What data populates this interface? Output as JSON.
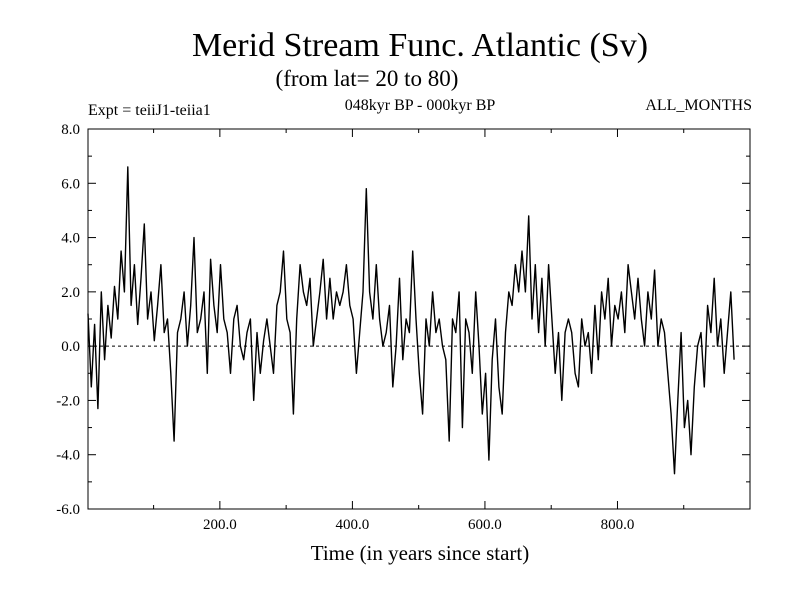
{
  "chart_data": {
    "type": "line",
    "title": "Merid Stream Func. Atlantic (Sv)",
    "subtitle": "(from lat= 20 to 80)",
    "experiment": "Expt = teiiJ1-teiia1",
    "period": "048kyr BP - 000kyr BP",
    "months": "ALL_MONTHS",
    "xlabel": "Time (in years since start)",
    "ylabel": "",
    "xlim": [
      1,
      1000
    ],
    "ylim": [
      -6,
      8
    ],
    "x_ticks": [
      200,
      400,
      600,
      800
    ],
    "x_tick_labels": [
      "200.0",
      "400.0",
      "600.0",
      "800.0"
    ],
    "y_ticks": [
      -6,
      -4,
      -2,
      0,
      2,
      4,
      6,
      8
    ],
    "y_tick_labels": [
      "-6.0",
      "-4.0",
      "-2.0",
      "0.0",
      "2.0",
      "4.0",
      "6.0",
      "8.0"
    ],
    "zero_line": "dashed",
    "line_color": "#000000",
    "series": [
      {
        "x_start": 1,
        "x_step": 5,
        "values": [
          1.2,
          -1.5,
          0.8,
          -2.3,
          2.0,
          -0.5,
          1.5,
          0.3,
          2.2,
          1.0,
          3.5,
          2.0,
          6.6,
          1.5,
          3.0,
          0.8,
          2.5,
          4.5,
          1.0,
          2.0,
          0.2,
          1.5,
          3.0,
          0.5,
          1.0,
          -1.0,
          -3.5,
          0.5,
          1.0,
          2.0,
          0.0,
          1.5,
          4.0,
          0.5,
          1.0,
          2.0,
          -1.0,
          3.2,
          1.5,
          0.5,
          3.0,
          1.0,
          0.5,
          -1.0,
          1.0,
          1.5,
          0.0,
          -0.5,
          0.5,
          1.0,
          -2.0,
          0.5,
          -1.0,
          0.2,
          1.0,
          0.0,
          -1.0,
          1.5,
          2.0,
          3.5,
          1.0,
          0.5,
          -2.5,
          1.0,
          3.0,
          2.0,
          1.5,
          2.5,
          0.0,
          1.0,
          2.0,
          3.2,
          1.0,
          2.5,
          1.0,
          2.0,
          1.5,
          2.0,
          3.0,
          1.5,
          1.0,
          -1.0,
          0.5,
          2.0,
          5.8,
          2.0,
          1.0,
          3.0,
          1.0,
          0.0,
          0.5,
          1.5,
          -1.5,
          0.0,
          2.5,
          -0.5,
          1.0,
          0.5,
          3.5,
          1.0,
          -1.0,
          -2.5,
          1.0,
          0.0,
          2.0,
          0.5,
          1.0,
          0.0,
          -0.5,
          -3.5,
          1.0,
          0.5,
          2.0,
          -3.0,
          1.0,
          0.5,
          -1.0,
          2.0,
          0.0,
          -2.5,
          -1.0,
          -4.2,
          -0.5,
          1.0,
          -1.5,
          -2.5,
          0.5,
          2.0,
          1.5,
          3.0,
          2.0,
          3.5,
          2.0,
          4.8,
          1.0,
          3.0,
          0.5,
          2.5,
          0.0,
          3.0,
          1.0,
          -1.0,
          0.5,
          -2.0,
          0.5,
          1.0,
          0.5,
          -1.0,
          -1.5,
          1.0,
          0.0,
          0.5,
          -1.0,
          1.5,
          -0.5,
          2.0,
          1.0,
          2.5,
          0.0,
          1.5,
          1.0,
          2.0,
          0.5,
          3.0,
          2.0,
          1.0,
          2.5,
          1.0,
          0.0,
          2.0,
          1.0,
          2.8,
          0.0,
          1.0,
          0.5,
          -1.0,
          -2.5,
          -4.7,
          -2.0,
          0.5,
          -3.0,
          -2.0,
          -4.0,
          -1.5,
          0.0,
          0.5,
          -1.5,
          1.5,
          0.5,
          2.5,
          0.0,
          1.0,
          -1.0,
          0.5,
          2.0,
          -0.5
        ]
      }
    ]
  }
}
